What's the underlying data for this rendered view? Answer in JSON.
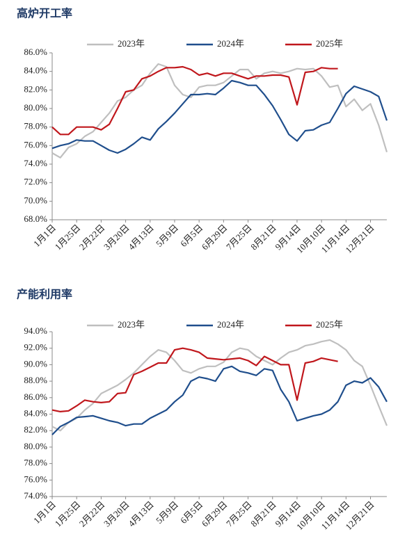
{
  "chart_data": [
    {
      "type": "line",
      "title": "高炉开工率",
      "categories": [
        "1月1日",
        null,
        null,
        "1月25日",
        null,
        null,
        "2月22日",
        null,
        null,
        "3月20日",
        null,
        null,
        "4月13日",
        null,
        null,
        "5月9日",
        null,
        null,
        "6月5日",
        null,
        null,
        "6月29日",
        null,
        null,
        "7月25日",
        null,
        null,
        "8月21日",
        null,
        null,
        "9月14日",
        null,
        null,
        "10月10日",
        null,
        null,
        "11月14日",
        null,
        null,
        "12月21日",
        null,
        null
      ],
      "series": [
        {
          "name": "2023年",
          "color": "#bfbfbf",
          "values": [
            75.2,
            74.7,
            75.8,
            76.2,
            77.0,
            77.5,
            78.5,
            79.5,
            80.8,
            81.2,
            82.0,
            82.5,
            83.8,
            84.8,
            84.5,
            82.5,
            81.5,
            81.2,
            82.3,
            82.5,
            82.5,
            82.8,
            83.5,
            84.2,
            84.2,
            83.2,
            83.8,
            84.0,
            83.8,
            84.0,
            84.3,
            84.2,
            84.3,
            83.5,
            82.3,
            82.5,
            80.2,
            81.0,
            79.8,
            80.5,
            78.2,
            75.3
          ]
        },
        {
          "name": "2024年",
          "color": "#1f4e8c",
          "values": [
            75.7,
            76.0,
            76.2,
            76.6,
            76.5,
            76.5,
            76.0,
            75.5,
            75.2,
            75.6,
            76.2,
            76.9,
            76.6,
            77.8,
            78.6,
            79.5,
            80.5,
            81.5,
            81.5,
            81.6,
            81.5,
            82.2,
            83.0,
            82.8,
            82.5,
            82.5,
            81.5,
            80.3,
            78.8,
            77.2,
            76.5,
            77.6,
            77.7,
            78.2,
            78.5,
            80.0,
            81.6,
            82.4,
            82.1,
            81.8,
            81.3,
            78.7
          ]
        },
        {
          "name": "2025年",
          "color": "#c0171c",
          "values": [
            78.0,
            77.2,
            77.2,
            78.0,
            78.0,
            78.0,
            77.7,
            78.3,
            80.0,
            81.8,
            82.0,
            83.2,
            83.5,
            84.0,
            84.4,
            84.4,
            84.5,
            84.2,
            83.6,
            83.8,
            83.5,
            83.8,
            83.8,
            83.5,
            83.2,
            83.5,
            83.5,
            83.6,
            83.6,
            83.4,
            80.4,
            83.9,
            84.0,
            84.4,
            84.3,
            84.3,
            null,
            null,
            null,
            null,
            null,
            null
          ]
        }
      ],
      "ylim": [
        68,
        86
      ],
      "yticks": [
        {
          "value": 68,
          "label": "68.0%"
        },
        {
          "value": 70,
          "label": "70.0%"
        },
        {
          "value": 72,
          "label": "72.0%"
        },
        {
          "value": 74,
          "label": "74.0%"
        },
        {
          "value": 76,
          "label": "76.0%"
        },
        {
          "value": 78,
          "label": "78.0%"
        },
        {
          "value": 80,
          "label": "80.0%"
        },
        {
          "value": 82,
          "label": "82.0%"
        },
        {
          "value": 84,
          "label": "84.0%"
        },
        {
          "value": 86,
          "label": "86.0%"
        }
      ]
    },
    {
      "type": "line",
      "title": "产能利用率",
      "categories": [
        "1月1日",
        null,
        null,
        "1月25日",
        null,
        null,
        "2月22日",
        null,
        null,
        "3月20日",
        null,
        null,
        "4月13日",
        null,
        null,
        "5月9日",
        null,
        null,
        "6月5日",
        null,
        null,
        "6月29日",
        null,
        null,
        "7月25日",
        null,
        null,
        "8月21日",
        null,
        null,
        "9月14日",
        null,
        null,
        "10月10日",
        null,
        null,
        "11月14日",
        null,
        null,
        "12月21日",
        null,
        null
      ],
      "series": [
        {
          "name": "2023年",
          "color": "#bfbfbf",
          "values": [
            82.5,
            82.0,
            83.0,
            83.5,
            84.5,
            85.3,
            86.5,
            87.0,
            87.5,
            88.2,
            89.0,
            90.0,
            91.0,
            91.8,
            91.5,
            90.5,
            89.3,
            89.0,
            89.5,
            89.8,
            89.8,
            90.3,
            91.5,
            92.0,
            91.8,
            91.0,
            90.5,
            90.0,
            90.8,
            91.5,
            91.8,
            92.3,
            92.5,
            92.8,
            93.0,
            92.5,
            91.8,
            90.5,
            89.8,
            87.5,
            85.0,
            82.6
          ]
        },
        {
          "name": "2024年",
          "color": "#1f4e8c",
          "values": [
            81.5,
            82.5,
            83.0,
            83.6,
            83.7,
            83.8,
            83.5,
            83.2,
            83.0,
            82.6,
            82.8,
            82.8,
            83.5,
            84.0,
            84.5,
            85.5,
            86.3,
            88.0,
            88.5,
            88.3,
            88.0,
            89.5,
            89.8,
            89.2,
            89.0,
            88.7,
            89.5,
            89.3,
            87.0,
            85.5,
            83.2,
            83.5,
            83.8,
            84.0,
            84.5,
            85.5,
            87.5,
            88.0,
            87.8,
            88.4,
            87.3,
            85.5
          ]
        },
        {
          "name": "2025年",
          "color": "#c0171c",
          "values": [
            84.5,
            84.3,
            84.4,
            85.0,
            85.7,
            85.5,
            85.4,
            85.5,
            86.5,
            86.6,
            88.8,
            89.2,
            89.7,
            90.2,
            90.2,
            91.8,
            92.0,
            91.8,
            91.5,
            90.8,
            90.7,
            90.6,
            90.7,
            90.8,
            90.5,
            89.9,
            91.0,
            90.5,
            90.0,
            90.0,
            85.7,
            90.2,
            90.4,
            90.8,
            90.6,
            90.4,
            null,
            null,
            null,
            null,
            null,
            null
          ]
        }
      ],
      "ylim": [
        74,
        94
      ],
      "yticks": [
        {
          "value": 74,
          "label": "74.0%"
        },
        {
          "value": 76,
          "label": "76.0%"
        },
        {
          "value": 78,
          "label": "78.0%"
        },
        {
          "value": 80,
          "label": "80.0%"
        },
        {
          "value": 82,
          "label": "82.0%"
        },
        {
          "value": 84,
          "label": "84.0%"
        },
        {
          "value": 86,
          "label": "86.0%"
        },
        {
          "value": 88,
          "label": "88.0%"
        },
        {
          "value": 90,
          "label": "90.0%"
        },
        {
          "value": 92,
          "label": "92.0%"
        },
        {
          "value": 94,
          "label": "94.0%"
        }
      ]
    }
  ]
}
